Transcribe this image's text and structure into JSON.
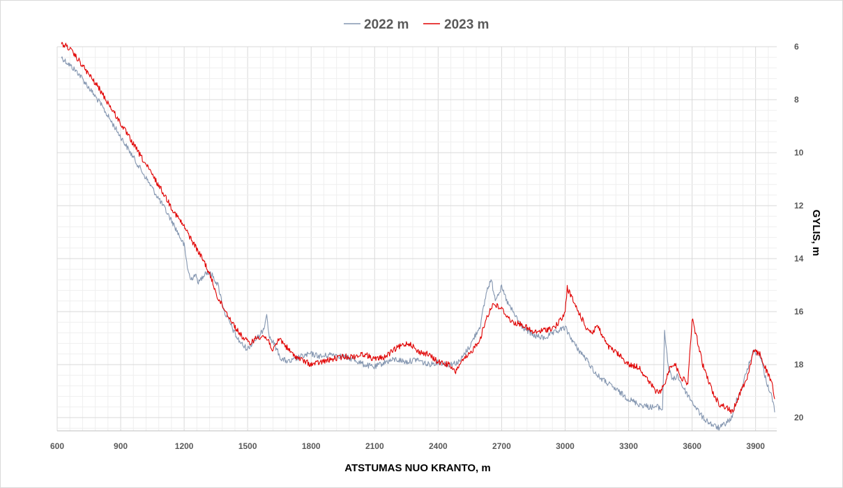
{
  "chart_data": {
    "type": "line",
    "title": "",
    "xlabel": "ATSTUMAS NUO KRANTO, m",
    "ylabel": "GYLIS, m",
    "xlim": [
      600,
      4000
    ],
    "ylim": [
      6,
      20.5
    ],
    "y_inverted": true,
    "x_ticks": [
      600,
      900,
      1200,
      1500,
      1800,
      2100,
      2400,
      2700,
      3000,
      3300,
      3600,
      3900
    ],
    "y_ticks": [
      6,
      8,
      10,
      12,
      14,
      16,
      18,
      20
    ],
    "grid": true,
    "legend_position": "top",
    "series": [
      {
        "name": "2022 m",
        "color": "#8496b0",
        "x": [
          620,
          700,
          800,
          900,
          1000,
          1100,
          1150,
          1200,
          1215,
          1230,
          1250,
          1270,
          1300,
          1330,
          1360,
          1390,
          1420,
          1450,
          1480,
          1500,
          1530,
          1560,
          1580,
          1590,
          1600,
          1630,
          1660,
          1700,
          1750,
          1800,
          1850,
          1900,
          1950,
          2000,
          2050,
          2100,
          2150,
          2200,
          2250,
          2300,
          2350,
          2400,
          2450,
          2500,
          2550,
          2600,
          2630,
          2650,
          2670,
          2700,
          2730,
          2760,
          2800,
          2850,
          2900,
          2950,
          3000,
          3050,
          3100,
          3150,
          3200,
          3250,
          3300,
          3350,
          3400,
          3440,
          3460,
          3470,
          3490,
          3510,
          3530,
          3560,
          3600,
          3650,
          3700,
          3730,
          3760,
          3790,
          3810,
          3830,
          3860,
          3890,
          3920,
          3950,
          3980,
          3990
        ],
        "y": [
          6.4,
          7.0,
          8.1,
          9.4,
          10.7,
          12.0,
          12.7,
          13.5,
          14.3,
          14.8,
          14.6,
          14.9,
          14.5,
          14.6,
          15.0,
          16.0,
          16.5,
          17.0,
          17.3,
          17.4,
          17.1,
          16.9,
          16.5,
          16.0,
          16.9,
          17.3,
          17.8,
          17.9,
          17.7,
          17.6,
          17.7,
          17.6,
          17.7,
          17.8,
          18.0,
          18.1,
          17.9,
          17.8,
          17.9,
          17.8,
          18.0,
          17.9,
          18.0,
          17.9,
          17.3,
          16.5,
          15.2,
          14.8,
          15.5,
          15.1,
          15.7,
          16.1,
          16.6,
          16.9,
          17.0,
          16.8,
          16.6,
          17.3,
          17.8,
          18.4,
          18.7,
          19.0,
          19.3,
          19.5,
          19.6,
          19.6,
          19.7,
          16.8,
          18.2,
          18.6,
          18.4,
          18.9,
          19.4,
          20.0,
          20.3,
          20.4,
          20.2,
          20.0,
          19.3,
          19.0,
          18.2,
          17.5,
          17.6,
          18.6,
          19.3,
          19.8
        ]
      },
      {
        "name": "2023 m",
        "color": "#e00000",
        "x": [
          620,
          650,
          700,
          800,
          900,
          1000,
          1100,
          1150,
          1200,
          1250,
          1300,
          1330,
          1360,
          1390,
          1420,
          1450,
          1480,
          1510,
          1540,
          1570,
          1600,
          1620,
          1650,
          1680,
          1710,
          1750,
          1800,
          1850,
          1900,
          1950,
          2000,
          2050,
          2100,
          2150,
          2200,
          2250,
          2270,
          2300,
          2350,
          2400,
          2450,
          2480,
          2500,
          2550,
          2600,
          2630,
          2660,
          2700,
          2750,
          2800,
          2850,
          2900,
          2950,
          2990,
          3000,
          3010,
          3050,
          3100,
          3130,
          3150,
          3200,
          3250,
          3300,
          3350,
          3400,
          3440,
          3460,
          3480,
          3500,
          3520,
          3550,
          3580,
          3600,
          3620,
          3650,
          3700,
          3730,
          3760,
          3790,
          3810,
          3830,
          3860,
          3890,
          3920,
          3950,
          3980,
          3990
        ],
        "y": [
          5.9,
          6.0,
          6.5,
          7.6,
          8.9,
          10.2,
          11.5,
          12.2,
          12.8,
          13.5,
          14.2,
          14.8,
          15.5,
          15.9,
          16.3,
          16.7,
          17.0,
          17.2,
          17.0,
          16.9,
          17.1,
          17.5,
          17.0,
          17.3,
          17.6,
          17.8,
          18.0,
          17.9,
          17.8,
          17.7,
          17.7,
          17.6,
          17.8,
          17.7,
          17.4,
          17.2,
          17.2,
          17.5,
          17.6,
          17.9,
          18.0,
          18.3,
          18.0,
          17.6,
          17.0,
          16.2,
          15.7,
          15.9,
          16.4,
          16.5,
          16.8,
          16.7,
          16.6,
          16.2,
          16.0,
          15.1,
          15.8,
          16.6,
          16.8,
          16.5,
          17.3,
          17.6,
          18.0,
          18.1,
          18.7,
          19.1,
          18.9,
          18.5,
          18.0,
          18.0,
          18.5,
          18.7,
          16.3,
          16.9,
          18.0,
          19.1,
          19.5,
          19.6,
          19.8,
          19.4,
          19.0,
          18.5,
          17.5,
          17.6,
          18.2,
          18.8,
          19.3
        ]
      }
    ]
  }
}
